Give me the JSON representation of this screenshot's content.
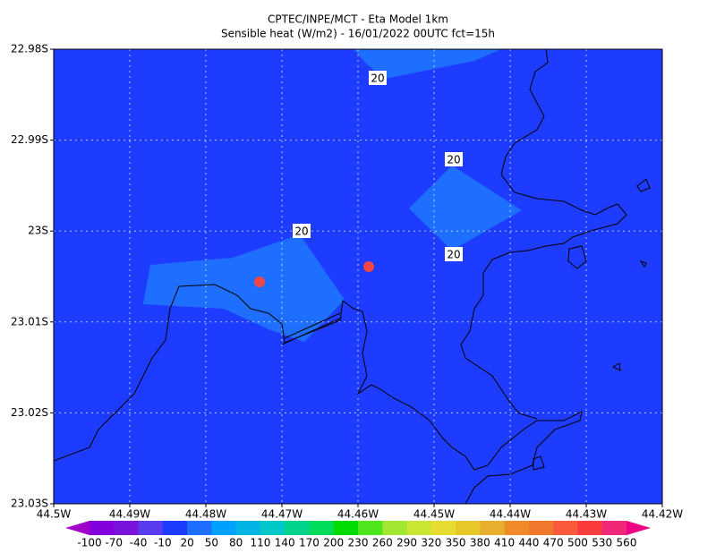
{
  "title": [
    "CPTEC/INPE/MCT -  Eta Model 1km",
    "Sensible heat (W/m2) - 16/01/2022 00UTC fct=15h"
  ],
  "map": {
    "xlim": [
      -44.5,
      -44.42
    ],
    "xticks": [
      {
        "value": -44.5,
        "label": "44.5W"
      },
      {
        "value": -44.49,
        "label": "44.49W"
      },
      {
        "value": -44.48,
        "label": "44.48W"
      },
      {
        "value": -44.47,
        "label": "44.47W"
      },
      {
        "value": -44.46,
        "label": "44.46W"
      },
      {
        "value": -44.45,
        "label": "44.45W"
      },
      {
        "value": -44.44,
        "label": "44.44W"
      },
      {
        "value": -44.43,
        "label": "44.43W"
      },
      {
        "value": -44.42,
        "label": "44.42W"
      }
    ],
    "ylim": [
      -23.03,
      -22.98
    ],
    "yticks": [
      {
        "value": -22.98,
        "label": "22.98S"
      },
      {
        "value": -22.99,
        "label": "22.99S"
      },
      {
        "value": -23,
        "label": "23S"
      },
      {
        "value": -23.01,
        "label": "23.01S"
      },
      {
        "value": -23.02,
        "label": "23.02S"
      },
      {
        "value": -23.03,
        "label": "23.03S"
      }
    ],
    "grid": true
  },
  "contour_labels": [
    20,
    20,
    20,
    20
  ],
  "colorbar": {
    "levels": [
      -100,
      -70,
      -40,
      -10,
      20,
      50,
      80,
      110,
      140,
      170,
      200,
      230,
      260,
      290,
      320,
      350,
      380,
      410,
      440,
      470,
      500,
      530,
      560
    ],
    "colors": [
      "#a000c8",
      "#8200dc",
      "#7814dc",
      "#5a3cf0",
      "#1e3cff",
      "#1e6eff",
      "#00a0ff",
      "#00b4e6",
      "#00c8c8",
      "#00d28c",
      "#00dc5a",
      "#00dc00",
      "#50e61e",
      "#a0e632",
      "#c8e632",
      "#e6dc32",
      "#e6c828",
      "#e6af2d",
      "#f08c28",
      "#f0782d",
      "#fa5a3c",
      "#fa3c3c",
      "#f02878",
      "#f00082"
    ]
  }
}
